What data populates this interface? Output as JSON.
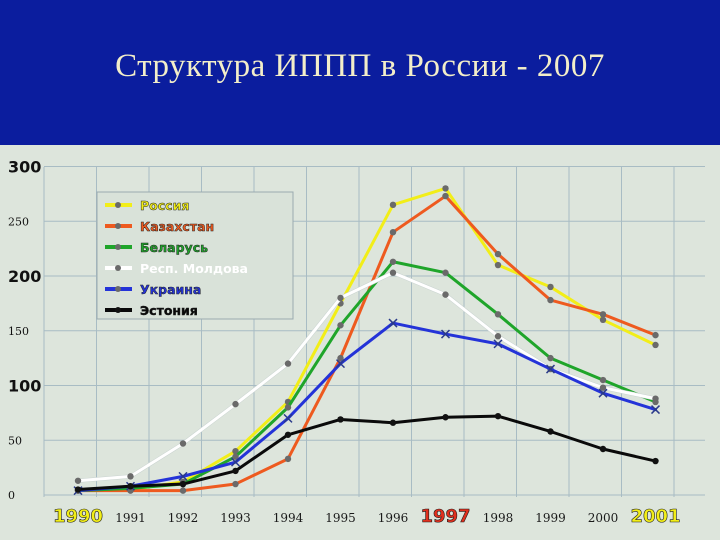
{
  "title": "Структура ИППП в России - 2007",
  "chart_data": {
    "type": "line",
    "title": "Структура ИППП в России - 2007",
    "xlabel": "",
    "ylabel": "",
    "x": [
      "1990",
      "1991",
      "1992",
      "1993",
      "1994",
      "1995",
      "1996",
      "1997",
      "1998",
      "1999",
      "2000",
      "2001"
    ],
    "ylim": [
      0,
      300
    ],
    "yticks": [
      "0",
      "50",
      "100",
      "150",
      "200",
      "250",
      "300"
    ],
    "highlighted_years": [
      "1990",
      "1997",
      "2001"
    ],
    "grid": true,
    "legend": "top-left",
    "series": [
      {
        "name": "Россия",
        "color": "#f2ee18",
        "values": [
          4,
          5,
          12,
          40,
          85,
          175,
          265,
          280,
          210,
          190,
          160,
          137
        ]
      },
      {
        "name": "Казахстан",
        "color": "#ee5a1f",
        "values": [
          4,
          4,
          4,
          10,
          33,
          125,
          240,
          273,
          220,
          178,
          165,
          146
        ]
      },
      {
        "name": "Беларусь",
        "color": "#1fa52a",
        "values": [
          4,
          6,
          10,
          35,
          80,
          155,
          213,
          203,
          165,
          125,
          105,
          85
        ]
      },
      {
        "name": "Респ. Молдова",
        "color": "#ffffff",
        "values": [
          13,
          17,
          47,
          83,
          120,
          180,
          203,
          183,
          145,
          115,
          98,
          88
        ]
      },
      {
        "name": "Украина",
        "color": "#2433d8",
        "values": [
          4,
          8,
          17,
          30,
          70,
          120,
          157,
          147,
          138,
          115,
          93,
          78
        ]
      },
      {
        "name": "Эстония",
        "color": "#0a0a0a",
        "values": [
          5,
          8,
          10,
          22,
          55,
          69,
          66,
          71,
          72,
          58,
          42,
          31
        ]
      }
    ]
  }
}
